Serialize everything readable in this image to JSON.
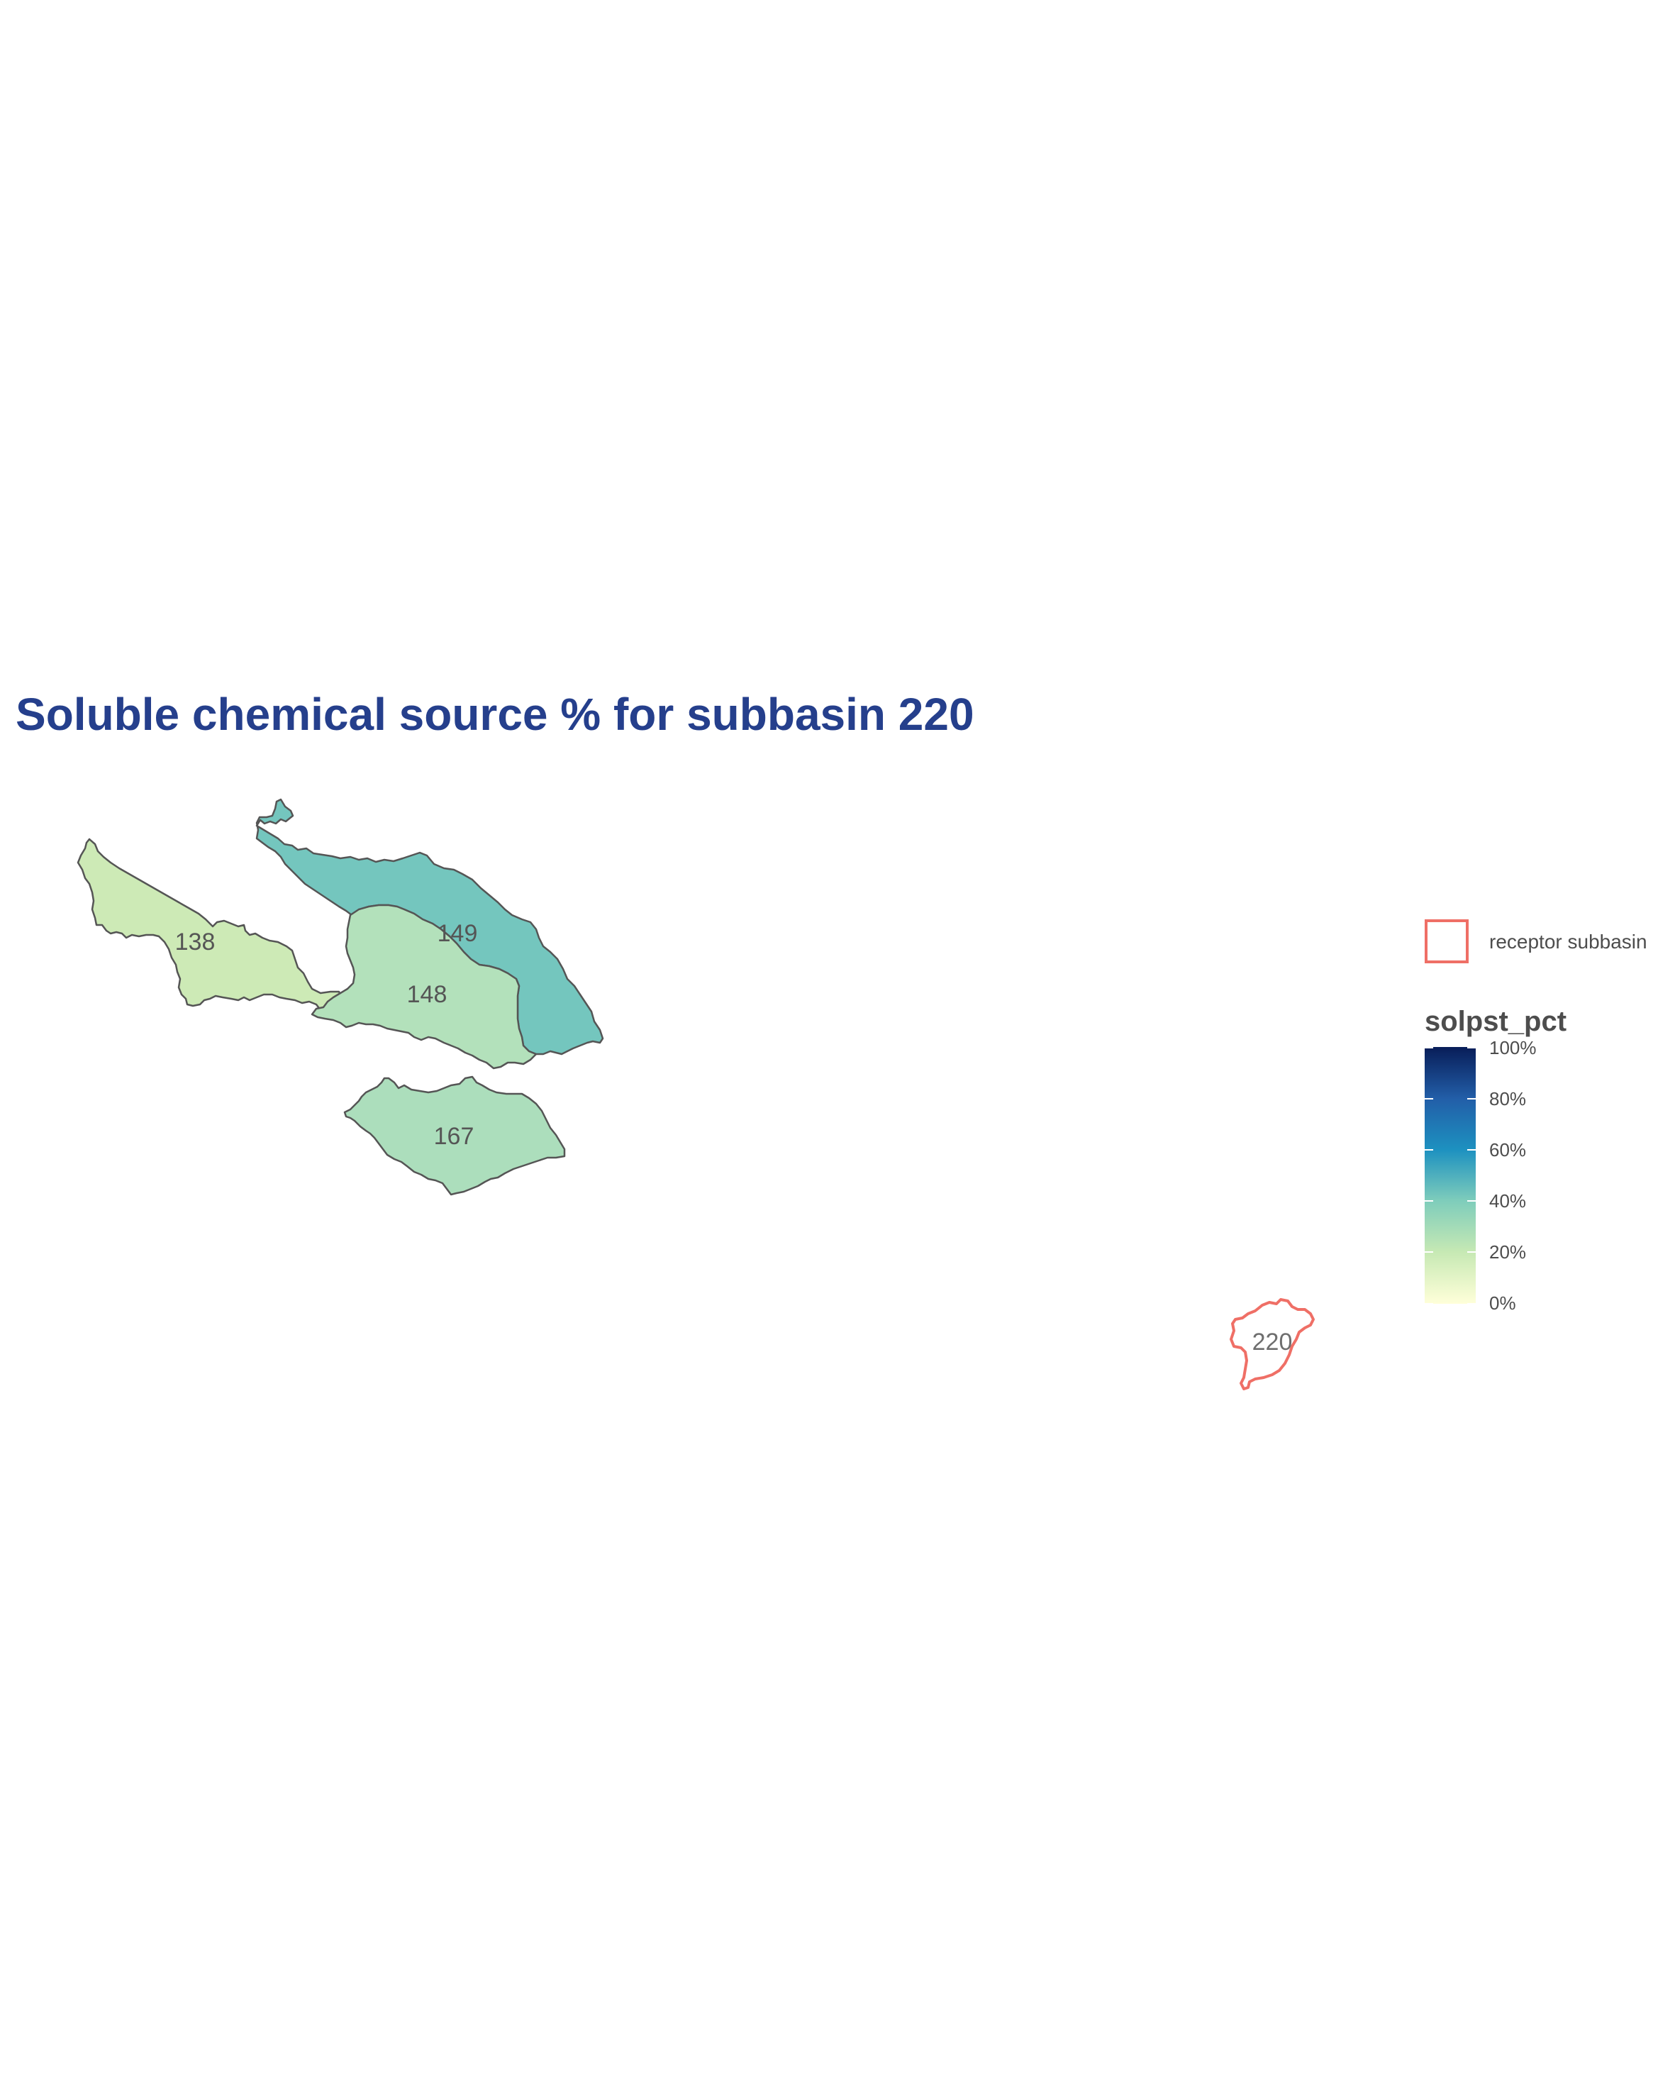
{
  "title": "Soluble chemical source % for subbasin 220",
  "legend": {
    "receptor_label": "receptor subbasin",
    "receptor_color": "#ef6f66",
    "scale_title": "solpst_pct",
    "scale_ticks": [
      "0%",
      "20%",
      "40%",
      "60%",
      "80%",
      "100%"
    ],
    "scale_colors": [
      "#ffffd9",
      "#c7e9b4",
      "#7fcdbb",
      "#1d91c0",
      "#225ea8",
      "#081d58"
    ]
  },
  "subbasins": [
    {
      "id": "138",
      "solpst_pct": 15,
      "fill": "#cdeab6"
    },
    {
      "id": "148",
      "solpst_pct": 24,
      "fill": "#b3e1bb"
    },
    {
      "id": "149",
      "solpst_pct": 40,
      "fill": "#74c6be"
    },
    {
      "id": "167",
      "solpst_pct": 26,
      "fill": "#acdebc"
    }
  ],
  "receptor": {
    "id": "220"
  }
}
